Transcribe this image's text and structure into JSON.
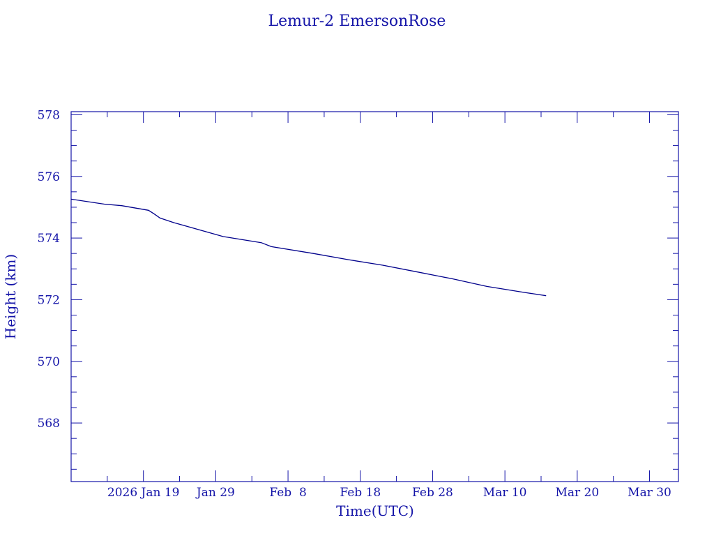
{
  "chart_data": {
    "type": "line",
    "title": "Lemur-2 EmersonRose",
    "xlabel": "Time(UTC)",
    "ylabel": "Height (km)",
    "x_units": "days since 2026 Jan 9 (UTC)",
    "xlim": [
      0,
      84
    ],
    "ylim": [
      566.1,
      578.1
    ],
    "x_ticks": [
      {
        "value": 10,
        "label": "2026 Jan 19"
      },
      {
        "value": 20,
        "label": "Jan 29"
      },
      {
        "value": 30,
        "label": "Feb  8"
      },
      {
        "value": 40,
        "label": "Feb 18"
      },
      {
        "value": 50,
        "label": "Feb 28"
      },
      {
        "value": 60,
        "label": "Mar 10"
      },
      {
        "value": 70,
        "label": "Mar 20"
      },
      {
        "value": 80,
        "label": "Mar 30"
      }
    ],
    "x_minor_step": 5,
    "y_ticks": [
      {
        "value": 568,
        "label": "568"
      },
      {
        "value": 570,
        "label": "570"
      },
      {
        "value": 572,
        "label": "572"
      },
      {
        "value": 574,
        "label": "574"
      },
      {
        "value": 576,
        "label": "576"
      },
      {
        "value": 578,
        "label": "578"
      }
    ],
    "y_minor_step": 0.5,
    "grid": false,
    "series": [
      {
        "name": "Height",
        "color": "#00008b",
        "x": [
          0,
          4.6,
          7.0,
          10.7,
          11.5,
          12.3,
          14.2,
          21.0,
          26.3,
          27.7,
          33.5,
          38.3,
          43.1,
          47.9,
          52.7,
          57.5,
          62.3,
          65.7
        ],
        "y": [
          575.26,
          575.1,
          575.05,
          574.9,
          574.78,
          574.65,
          574.5,
          574.05,
          573.85,
          573.72,
          573.5,
          573.3,
          573.12,
          572.9,
          572.68,
          572.43,
          572.25,
          572.13
        ]
      }
    ]
  }
}
